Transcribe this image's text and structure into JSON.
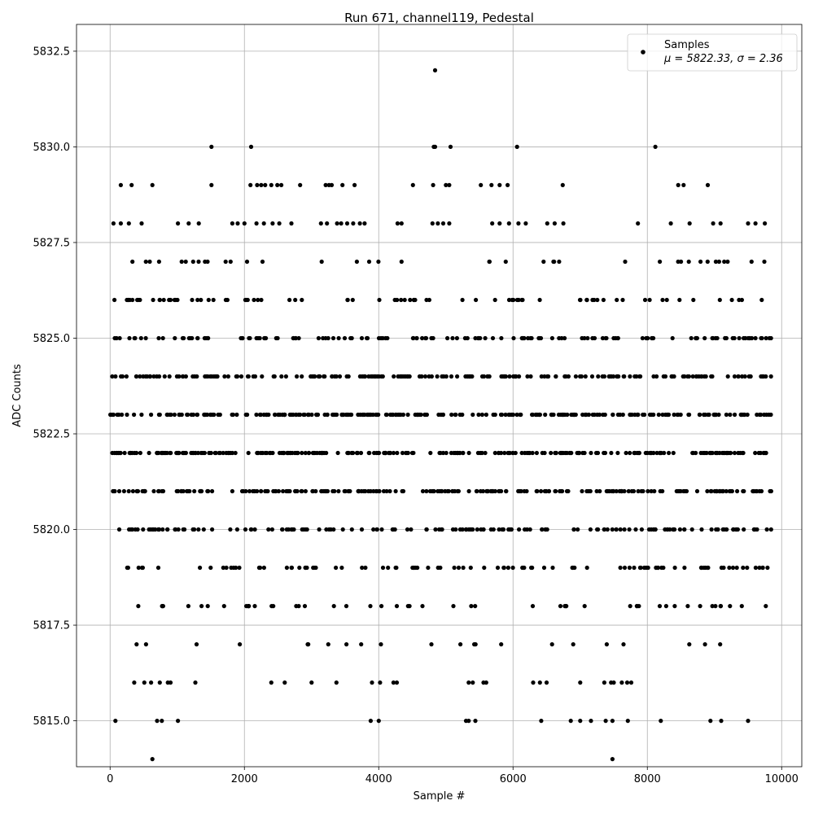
{
  "chart_data": {
    "type": "scatter",
    "title": "Run 671, channel119, Pedestal",
    "xlabel": "Sample #",
    "ylabel": "ADC Counts",
    "xlim": [
      -500,
      10300
    ],
    "ylim": [
      5813.8,
      5833.2
    ],
    "x_ticks": [
      0,
      2000,
      4000,
      6000,
      8000,
      10000
    ],
    "x_tick_labels": [
      "0",
      "2000",
      "4000",
      "6000",
      "8000",
      "10000"
    ],
    "y_ticks": [
      5815.0,
      5817.5,
      5820.0,
      5822.5,
      5825.0,
      5827.5,
      5830.0,
      5832.5
    ],
    "y_tick_labels": [
      "5815.0",
      "5817.5",
      "5820.0",
      "5822.5",
      "5825.0",
      "5827.5",
      "5830.0",
      "5832.5"
    ],
    "grid": true,
    "legend_position": "top-right",
    "marker_color": "#000000",
    "series": [
      {
        "name": "Samples",
        "stats_label": "μ = 5822.33, σ = 2.36",
        "n_samples": 9850,
        "x_start": 0,
        "x_end": 9850,
        "mean": 5822.33,
        "std": 2.36,
        "levels": [
          {
            "y": 5832,
            "x": [
              4840
            ]
          },
          {
            "y": 5830,
            "x": [
              1510,
              2100,
              4820,
              4840,
              5070,
              6060,
              8120
            ]
          },
          {
            "y": 5829,
            "x": [
              160,
              320,
              630,
              1510,
              2090,
              2190,
              2250,
              2310,
              2400,
              2490,
              2550,
              2830,
              3210,
              3260,
              3300,
              3460,
              3640,
              4510,
              4810,
              5000,
              5050,
              5520,
              5680,
              5800,
              5920,
              6740,
              8460,
              8540,
              8900
            ]
          },
          {
            "y": 5828,
            "x": [
              50,
              160,
              280,
              470,
              1010,
              1170,
              1320,
              1820,
              1900,
              2000,
              2180,
              2290,
              2420,
              2520,
              2700,
              3140,
              3230,
              3380,
              3440,
              3530,
              3620,
              3720,
              3790,
              4280,
              4340,
              4800,
              4880,
              4960,
              5050,
              5690,
              5800,
              5940,
              6080,
              6190,
              6510,
              6620,
              6750,
              7860,
              8350,
              8630,
              8980,
              9090,
              9500,
              9610,
              9750
            ]
          },
          {
            "y": 5814,
            "x": [
              630,
              7480
            ]
          },
          {
            "y": 5815,
            "x": [
              80,
              700,
              770,
              1010,
              3880,
              4000,
              5300,
              5340,
              5440,
              6420,
              6860,
              7000,
              7160,
              7380,
              7480,
              7710,
              8200,
              8940,
              9100,
              9500
            ]
          },
          {
            "y": 5816,
            "x": [
              360,
              510,
              610,
              740,
              860,
              900,
              1270,
              2400,
              2600,
              3000,
              3370,
              3900,
              4020,
              4220,
              4270,
              5340,
              5400,
              5560,
              5600,
              6300,
              6400,
              6500,
              7000,
              7360,
              7460,
              7500,
              7620,
              7700,
              7760
            ]
          }
        ]
      }
    ]
  }
}
